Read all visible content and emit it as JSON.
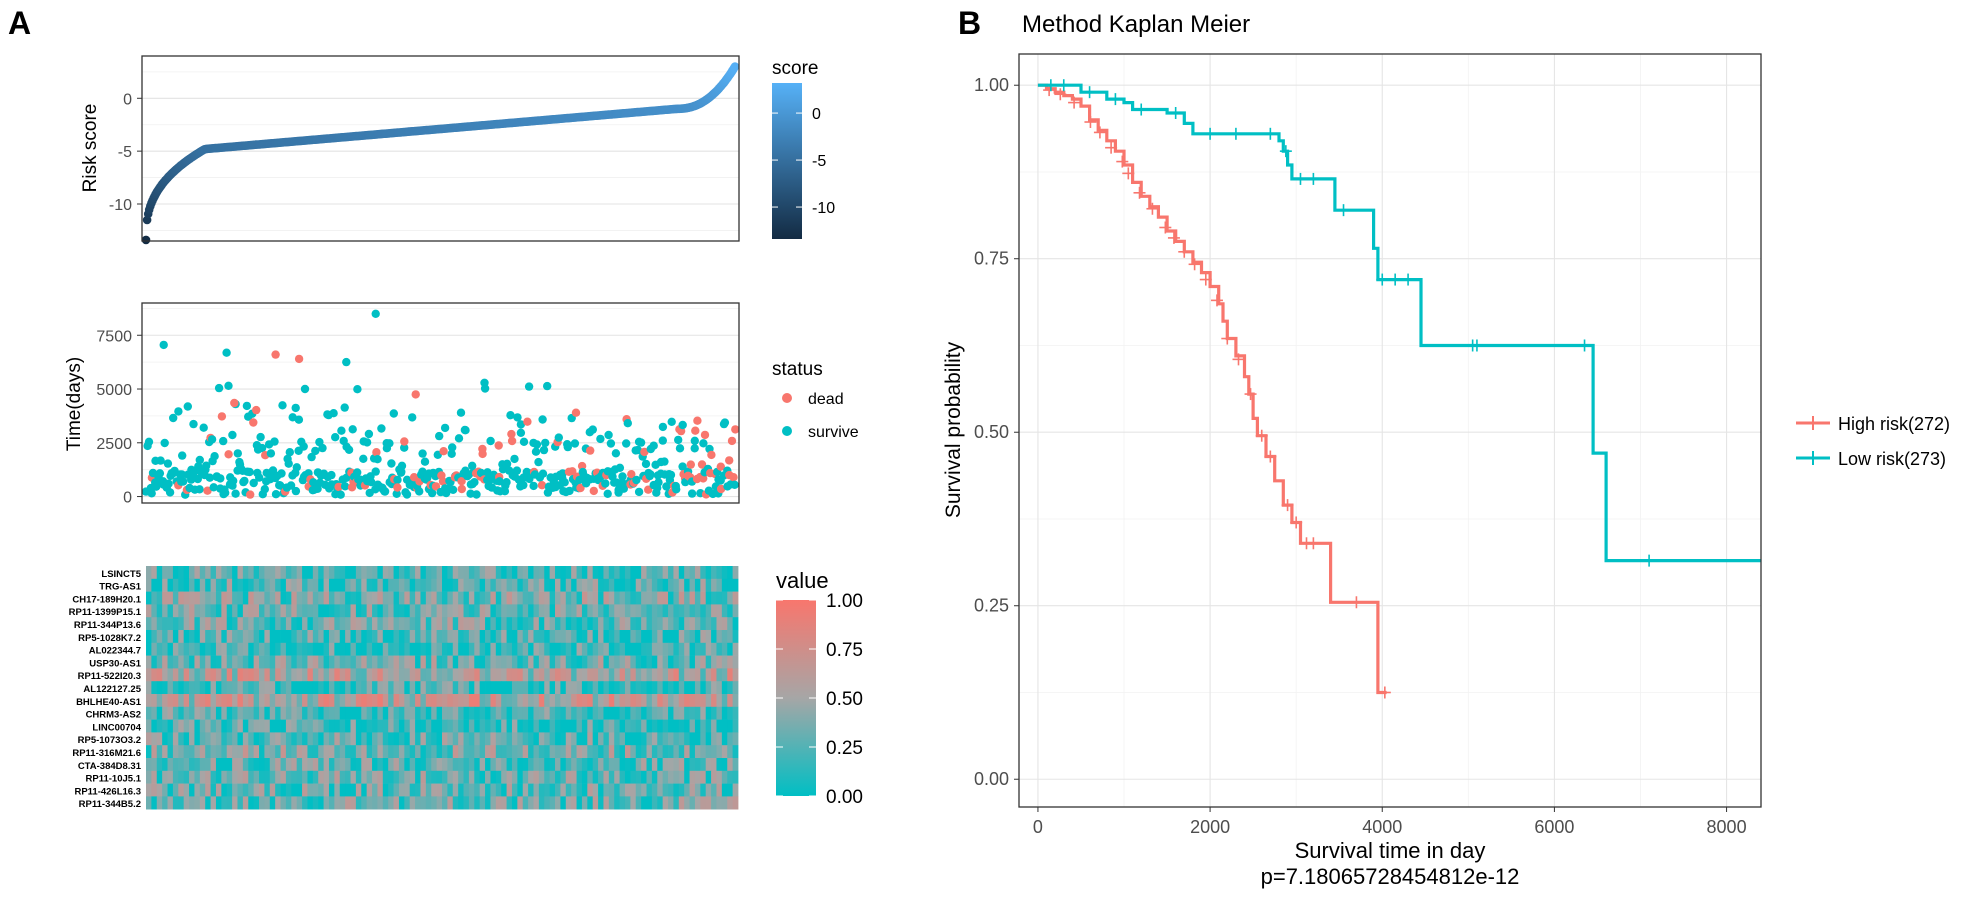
{
  "panels": {
    "A": {
      "label": "A",
      "risk": {
        "ylabel": "Risk score",
        "yticks": [
          "0",
          "-5",
          "-10"
        ],
        "legend_title": "score",
        "legend_ticks": [
          "0",
          "-5",
          "-10"
        ],
        "colors": [
          "#132B43",
          "#56B1F7"
        ]
      },
      "status": {
        "ylabel": "Time(days)",
        "yticks": [
          "7500",
          "5000",
          "2500",
          "0"
        ],
        "legend_title": "status",
        "legend_items": [
          {
            "label": "dead",
            "color": "#F8766D"
          },
          {
            "label": "survive",
            "color": "#00BFC4"
          }
        ]
      },
      "heatmap": {
        "genes": [
          "LSINCT5",
          "TRG-AS1",
          "CH17-189H20.1",
          "RP11-1399P15.1",
          "RP11-344P13.6",
          "RP5-1028K7.2",
          "AL022344.7",
          "USP30-AS1",
          "RP11-522I20.3",
          "AL122127.25",
          "BHLHE40-AS1",
          "CHRM3-AS2",
          "LINC00704",
          "RP5-1073O3.2",
          "RP11-316M21.6",
          "CTA-384D8.31",
          "RP11-10J5.1",
          "RP11-426L16.3",
          "RP11-344B5.2"
        ],
        "legend_title": "value",
        "legend_ticks": [
          "1.00",
          "0.75",
          "0.50",
          "0.25",
          "0.00"
        ],
        "colors": [
          "#00BFC4",
          "#A6A6A6",
          "#F8766D"
        ]
      }
    },
    "B": {
      "label": "B",
      "title": "Method Kaplan Meier",
      "xlabel": "Survival time in day",
      "ylabel": "Survival probability",
      "pvalue": "p=7.18065728454812e-12",
      "xticks": [
        "0",
        "2000",
        "4000",
        "6000",
        "8000"
      ],
      "yticks": [
        "1.00",
        "0.75",
        "0.50",
        "0.25",
        "0.00"
      ],
      "legend_items": [
        {
          "label": "High risk(272)",
          "color": "#F8766D"
        },
        {
          "label": "Low risk(273)",
          "color": "#00BFC4"
        }
      ]
    }
  },
  "chart_data": [
    {
      "type": "scatter",
      "panel": "A-top",
      "ylabel": "Risk score",
      "ylim": [
        -13.5,
        4
      ],
      "n": 545,
      "trend": "sorted ascending risk score from about -13.4 to about 3",
      "grid": true,
      "legend": "right"
    },
    {
      "type": "scatter",
      "panel": "A-middle",
      "ylabel": "Time(days)",
      "ylim": [
        -300,
        9000
      ],
      "series": [
        {
          "name": "dead"
        },
        {
          "name": "survive"
        }
      ],
      "grid": true,
      "legend": "right"
    },
    {
      "type": "heatmap",
      "panel": "A-bottom",
      "rows": 19,
      "range": [
        0,
        1
      ],
      "legend": "right"
    },
    {
      "type": "line",
      "panel": "B",
      "title": "Method Kaplan Meier",
      "xlabel": "Survival time in day",
      "ylabel": "Survival probability",
      "xlim": [
        -220,
        8400
      ],
      "ylim": [
        -0.04,
        1.045
      ],
      "grid": true,
      "legend": "right",
      "series": [
        {
          "name": "High risk(272)",
          "color": "#F8766D",
          "steps": [
            [
              0,
              1.0
            ],
            [
              100,
              0.995
            ],
            [
              200,
              0.99
            ],
            [
              300,
              0.985
            ],
            [
              400,
              0.98
            ],
            [
              500,
              0.97
            ],
            [
              600,
              0.95
            ],
            [
              700,
              0.935
            ],
            [
              800,
              0.92
            ],
            [
              900,
              0.905
            ],
            [
              1000,
              0.885
            ],
            [
              1100,
              0.86
            ],
            [
              1200,
              0.84
            ],
            [
              1300,
              0.825
            ],
            [
              1400,
              0.81
            ],
            [
              1500,
              0.79
            ],
            [
              1600,
              0.775
            ],
            [
              1700,
              0.76
            ],
            [
              1800,
              0.745
            ],
            [
              1900,
              0.73
            ],
            [
              2000,
              0.71
            ],
            [
              2100,
              0.685
            ],
            [
              2150,
              0.66
            ],
            [
              2200,
              0.635
            ],
            [
              2300,
              0.61
            ],
            [
              2400,
              0.58
            ],
            [
              2450,
              0.555
            ],
            [
              2500,
              0.52
            ],
            [
              2550,
              0.495
            ],
            [
              2650,
              0.465
            ],
            [
              2750,
              0.43
            ],
            [
              2850,
              0.395
            ],
            [
              2950,
              0.37
            ],
            [
              3050,
              0.34
            ],
            [
              3400,
              0.255
            ],
            [
              3950,
              0.125
            ],
            [
              4050,
              0.125
            ]
          ],
          "censors": [
            [
              130,
              0.993
            ],
            [
              260,
              0.987
            ],
            [
              420,
              0.975
            ],
            [
              610,
              0.947
            ],
            [
              720,
              0.932
            ],
            [
              850,
              0.91
            ],
            [
              980,
              0.89
            ],
            [
              1050,
              0.873
            ],
            [
              1180,
              0.845
            ],
            [
              1330,
              0.822
            ],
            [
              1480,
              0.795
            ],
            [
              1580,
              0.78
            ],
            [
              1700,
              0.76
            ],
            [
              1820,
              0.742
            ],
            [
              1950,
              0.72
            ],
            [
              2080,
              0.69
            ],
            [
              2200,
              0.635
            ],
            [
              2330,
              0.605
            ],
            [
              2470,
              0.555
            ],
            [
              2600,
              0.495
            ],
            [
              2700,
              0.465
            ],
            [
              2900,
              0.395
            ],
            [
              3000,
              0.37
            ],
            [
              3120,
              0.34
            ],
            [
              3200,
              0.34
            ],
            [
              3700,
              0.255
            ],
            [
              4030,
              0.125
            ]
          ]
        },
        {
          "name": "Low risk(273)",
          "color": "#00BFC4",
          "steps": [
            [
              0,
              1.0
            ],
            [
              500,
              0.99
            ],
            [
              800,
              0.98
            ],
            [
              1000,
              0.975
            ],
            [
              1100,
              0.965
            ],
            [
              1500,
              0.96
            ],
            [
              1700,
              0.945
            ],
            [
              1800,
              0.93
            ],
            [
              2800,
              0.92
            ],
            [
              2850,
              0.905
            ],
            [
              2900,
              0.885
            ],
            [
              2950,
              0.865
            ],
            [
              3450,
              0.82
            ],
            [
              3900,
              0.765
            ],
            [
              3950,
              0.72
            ],
            [
              4450,
              0.625
            ],
            [
              6450,
              0.47
            ],
            [
              6600,
              0.315
            ],
            [
              8400,
              0.315
            ]
          ],
          "censors": [
            [
              150,
              1.0
            ],
            [
              300,
              1.0
            ],
            [
              600,
              0.99
            ],
            [
              900,
              0.98
            ],
            [
              1200,
              0.965
            ],
            [
              1600,
              0.96
            ],
            [
              2000,
              0.93
            ],
            [
              2300,
              0.93
            ],
            [
              2700,
              0.93
            ],
            [
              2880,
              0.905
            ],
            [
              3050,
              0.865
            ],
            [
              3200,
              0.865
            ],
            [
              3550,
              0.82
            ],
            [
              4000,
              0.72
            ],
            [
              4150,
              0.72
            ],
            [
              4300,
              0.72
            ],
            [
              5050,
              0.625
            ],
            [
              5100,
              0.625
            ],
            [
              6350,
              0.625
            ],
            [
              7100,
              0.315
            ]
          ]
        }
      ]
    }
  ]
}
